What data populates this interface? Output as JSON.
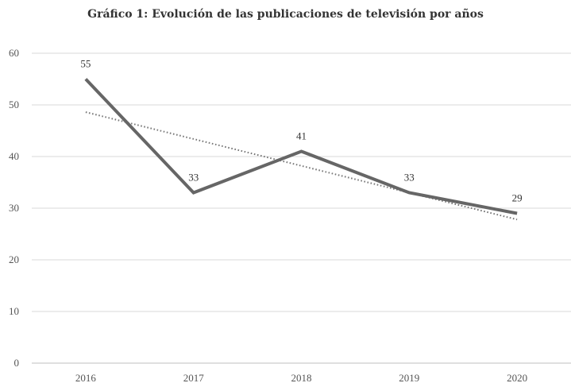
{
  "chart_data": {
    "type": "line",
    "title": "Gráfico 1: Evolución de las publicaciones de televisión por años",
    "categories": [
      "2016",
      "2017",
      "2018",
      "2019",
      "2020"
    ],
    "series": [
      {
        "values": [
          55,
          33,
          41,
          33,
          29
        ],
        "color": "#666666"
      }
    ],
    "trendline": {
      "style": "dotted",
      "color": "#777777",
      "start": 48.6,
      "end": 27.8
    },
    "data_labels": [
      "55",
      "33",
      "41",
      "33",
      "29"
    ],
    "ylim": [
      0,
      60
    ],
    "yticks": [
      "0",
      "10",
      "20",
      "30",
      "40",
      "50",
      "60"
    ],
    "grid": true,
    "legend": "none",
    "xlabel": "",
    "ylabel": ""
  }
}
